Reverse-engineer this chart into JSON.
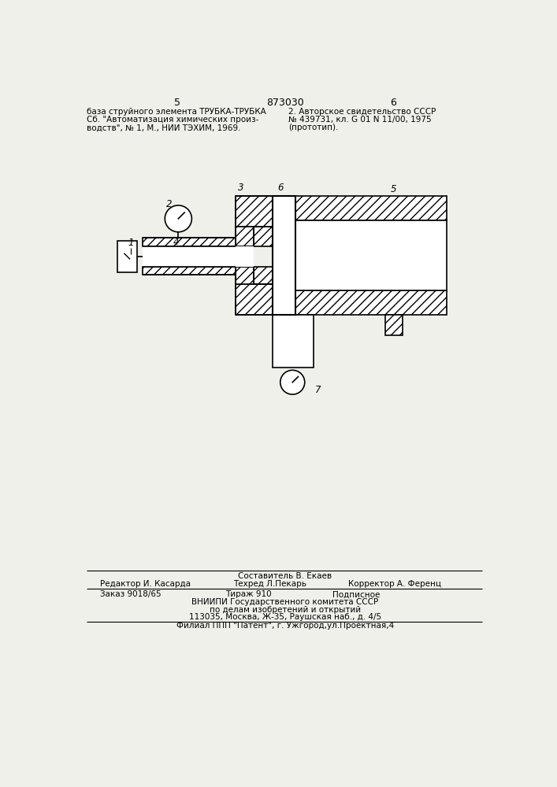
{
  "page_number_left": "5",
  "page_number_right": "6",
  "patent_number": "873030",
  "top_left_text": [
    "база струйного элемента ТРУБКА-ТРУБКА",
    "Сб. \"Автоматизация химических произ-",
    "водств\", № 1, М., НИИ ТЭХИМ, 1969."
  ],
  "top_right_text": [
    "2. Авторское свидетельство СССР",
    "№ 439731, кл. G 01 N 11/00, 1975",
    "(прототип)."
  ],
  "bottom_line1": "Составитель В. Екаев",
  "bottom_line2_parts": [
    "Редактор И. Касарда",
    "Техред Л.Пекарь",
    "Корректор А. Ференц"
  ],
  "bottom_line3_parts": [
    "Заказ 9018/65",
    "Тираж 910",
    "Подписное"
  ],
  "bottom_line4": "ВНИИПИ Государственного комитета СССР",
  "bottom_line5": "по делам изобретений и открытий",
  "bottom_line6": "113035, Москва, Ж-35, Раушская наб., д. 4/5",
  "bottom_line7": "Филиал ППП \"Патент\", г. Ужгород,ул.Проектная,4",
  "hatch_color": "#555555",
  "line_color": "#000000",
  "bg_color": "#f0f0eb"
}
